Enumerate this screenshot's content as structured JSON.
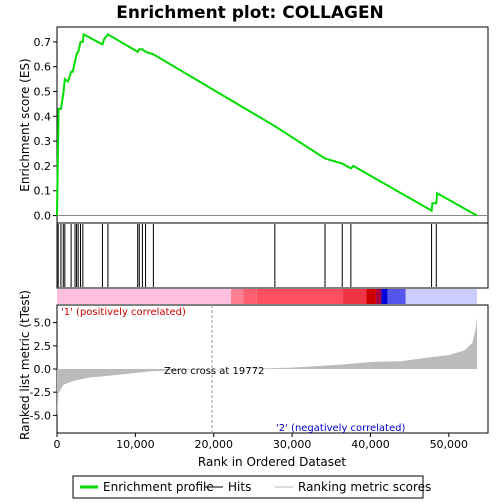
{
  "chart_data": {
    "type": "line",
    "title": "Enrichment plot: COLLAGEN",
    "xlabel": "Rank in Ordered Dataset",
    "es_panel": {
      "ylabel": "Enrichment score (ES)",
      "ylim": [
        -0.03,
        0.76
      ],
      "yticks": [
        "0.0",
        "0.1",
        "0.2",
        "0.3",
        "0.4",
        "0.5",
        "0.6",
        "0.7"
      ],
      "ytick_values": [
        0.0,
        0.1,
        0.2,
        0.3,
        0.4,
        0.5,
        0.6,
        0.7
      ],
      "color": "#00dd00",
      "x": [
        0,
        150,
        200,
        500,
        800,
        1000,
        1400,
        1800,
        2000,
        2300,
        2500,
        2700,
        2800,
        3000,
        3300,
        3400,
        5800,
        6000,
        6500,
        10300,
        10500,
        10900,
        11300,
        12300,
        27800,
        34200,
        36400,
        36900,
        37500,
        37800,
        47800,
        47900,
        48400,
        48500,
        53600
      ],
      "y": [
        0.0,
        0.33,
        0.43,
        0.43,
        0.49,
        0.55,
        0.54,
        0.58,
        0.58,
        0.62,
        0.65,
        0.66,
        0.67,
        0.7,
        0.7,
        0.73,
        0.69,
        0.71,
        0.73,
        0.66,
        0.67,
        0.67,
        0.66,
        0.65,
        0.36,
        0.23,
        0.21,
        0.2,
        0.19,
        0.2,
        0.02,
        0.05,
        0.05,
        0.09,
        0.0
      ]
    },
    "hits": [
      150,
      500,
      800,
      1000,
      1800,
      2300,
      2500,
      2700,
      3000,
      3300,
      5800,
      6500,
      10300,
      10500,
      10900,
      11300,
      12300,
      27800,
      34200,
      36400,
      37500,
      47800,
      48400
    ],
    "metric_panel": {
      "ylabel": "Ranked list metric (tTest)",
      "ylim": [
        -6.9,
        6.9
      ],
      "yticks": [
        "-5.0",
        "-2.5",
        "0.0",
        "2.5",
        "5.0"
      ],
      "ytick_values": [
        -5.0,
        -2.5,
        0.0,
        2.5,
        5.0
      ],
      "x": [
        0,
        200,
        800,
        2000,
        4000,
        8000,
        12000,
        16000,
        19772,
        24000,
        30000,
        36000,
        40000,
        44000,
        47000,
        50000,
        52000,
        53000,
        53400,
        53600
      ],
      "y": [
        -5.1,
        -2.6,
        -1.7,
        -1.3,
        -0.95,
        -0.6,
        -0.25,
        -0.08,
        0.0,
        0.02,
        0.15,
        0.45,
        0.75,
        0.85,
        1.2,
        1.5,
        2.0,
        2.8,
        4.2,
        5.5
      ],
      "fill_color": "#bbbbbb"
    },
    "xlim": [
      0,
      55000
    ],
    "xticks": [
      "0",
      "10,000",
      "20,000",
      "30,000",
      "40,000",
      "50,000"
    ],
    "xtick_values": [
      0,
      10000,
      20000,
      30000,
      40000,
      50000
    ],
    "zero_cross": 19772,
    "annotations": {
      "zero_cross_label": "Zero cross at 19772",
      "positive_label": "'1' (positively correlated)",
      "negative_label": "'2' (negatively correlated)",
      "positive_color": "#cc0000",
      "negative_color": "#0000cc"
    },
    "heat_bar": {
      "segments": [
        {
          "from": 0,
          "to": 22200,
          "color": "#ffc0e0"
        },
        {
          "from": 22200,
          "to": 23800,
          "color": "#ff8090"
        },
        {
          "from": 23800,
          "to": 25500,
          "color": "#ff6070"
        },
        {
          "from": 25500,
          "to": 36500,
          "color": "#ff5060"
        },
        {
          "from": 36500,
          "to": 39500,
          "color": "#ee3344"
        },
        {
          "from": 39500,
          "to": 40700,
          "color": "#cc0000"
        },
        {
          "from": 40700,
          "to": 41400,
          "color": "#aa0044"
        },
        {
          "from": 41400,
          "to": 42200,
          "color": "#0000dd"
        },
        {
          "from": 42200,
          "to": 44500,
          "color": "#5555ee"
        },
        {
          "from": 44500,
          "to": 53600,
          "color": "#ccccff"
        }
      ]
    },
    "legend": [
      {
        "label": "Enrichment profile",
        "color": "#00dd00",
        "kind": "line-thick"
      },
      {
        "label": "Hits",
        "color": "#000000",
        "kind": "line"
      },
      {
        "label": "Ranking metric scores",
        "color": "#bbbbbb",
        "kind": "line"
      }
    ],
    "legend_position": "bottom"
  }
}
